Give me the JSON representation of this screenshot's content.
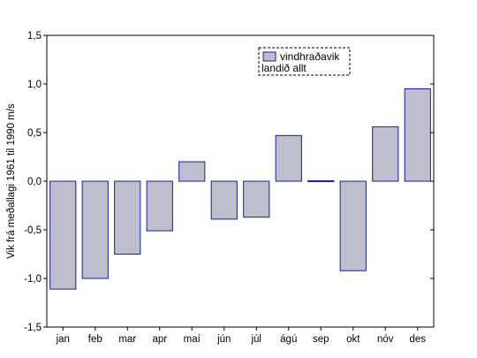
{
  "chart_data": {
    "type": "bar",
    "categories": [
      "jan",
      "feb",
      "mar",
      "apr",
      "maí",
      "jún",
      "júl",
      "ágú",
      "sep",
      "okt",
      "nóv",
      "des"
    ],
    "series": [
      {
        "name": "vindhraðavik landið allt",
        "values": [
          -1.11,
          -1.0,
          -0.75,
          -0.51,
          0.2,
          -0.39,
          -0.37,
          0.47,
          0.005,
          -0.92,
          0.56,
          0.95
        ]
      }
    ],
    "title": "",
    "xlabel": "",
    "ylabel": "Vik frá meðallagi 1961 til 1990 m/s",
    "ylim": [
      -1.5,
      1.5
    ],
    "yticks": [
      -1.5,
      -1.0,
      -0.5,
      0.0,
      0.5,
      1.0,
      1.5
    ],
    "ytick_labels": [
      "-1,5",
      "-1,0",
      "-0,5",
      "0,0",
      "0,5",
      "1,0",
      "1,5"
    ],
    "legend": {
      "line1": "vindhraðavik",
      "line2": "landið allt",
      "placement": "top-right"
    },
    "grid": false,
    "colors": {
      "bar_fill": "#bebecc",
      "bar_stroke": "#1a1aa0",
      "axis": "#000000"
    }
  }
}
